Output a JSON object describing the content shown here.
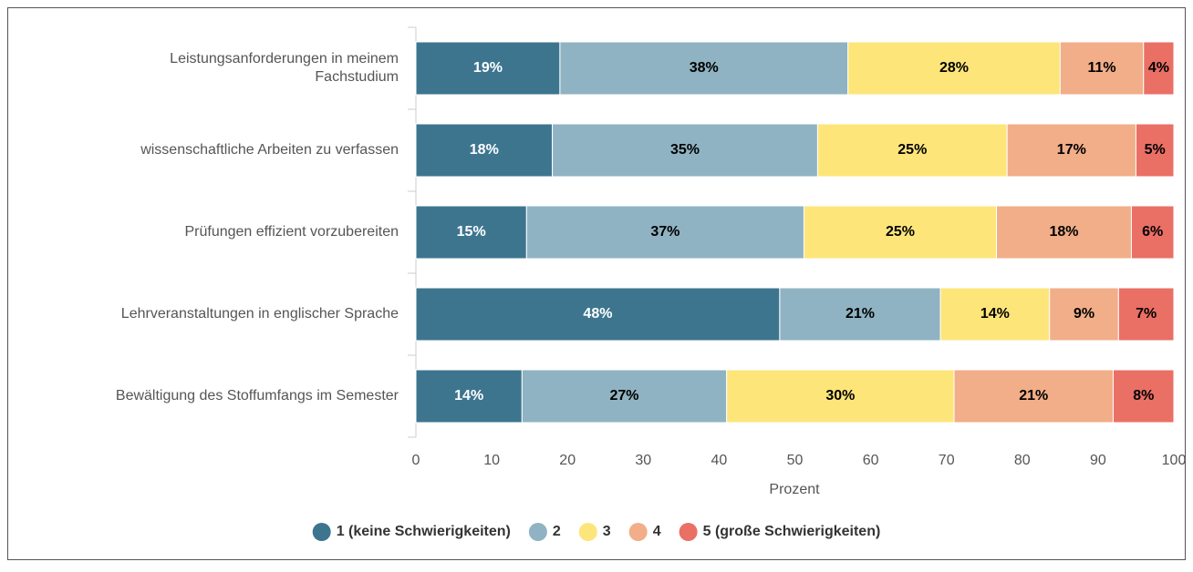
{
  "chart_data": {
    "type": "stacked-barh",
    "categories": [
      "Leistungsanforderungen in meinem\nFachstudium",
      "wissenschaftliche Arbeiten zu verfassen",
      "Prüfungen effizient vorzubereiten",
      "Lehrveranstaltungen in englischer Sprache",
      "Bewältigung des Stoffumfangs im Semester"
    ],
    "series": [
      {
        "name": "1 (keine Schwierigkeiten)",
        "color": "#3d758f",
        "label_color": "#ffffff",
        "values": [
          19,
          18,
          14.6,
          48,
          14
        ],
        "value_labels": [
          "19%",
          "18%",
          "15%",
          "48%",
          "14%"
        ]
      },
      {
        "name": "2",
        "color": "#8fb3c2",
        "label_color": "#000000",
        "values": [
          38,
          35,
          36.6,
          21.2,
          27
        ],
        "value_labels": [
          "38%",
          "35%",
          "37%",
          "21%",
          "27%"
        ]
      },
      {
        "name": "3",
        "color": "#fde57a",
        "label_color": "#000000",
        "values": [
          28,
          25,
          25.4,
          14.4,
          30
        ],
        "value_labels": [
          "28%",
          "25%",
          "25%",
          "14%",
          "30%"
        ]
      },
      {
        "name": "4",
        "color": "#f1ae88",
        "label_color": "#000000",
        "values": [
          11,
          17,
          17.8,
          9.1,
          21
        ],
        "value_labels": [
          "11%",
          "17%",
          "18%",
          "9%",
          "21%"
        ]
      },
      {
        "name": "5 (große Schwierigkeiten)",
        "color": "#ea6f65",
        "label_color": "#000000",
        "values": [
          4,
          5,
          5.6,
          7.3,
          8
        ],
        "value_labels": [
          "4%",
          "5%",
          "6%",
          "7%",
          "8%"
        ]
      }
    ],
    "xlabel": "Prozent",
    "xlim": [
      0,
      100
    ],
    "xticks": [
      0,
      10,
      20,
      30,
      40,
      50,
      60,
      70,
      80,
      90,
      100
    ],
    "grid": false,
    "legend": "bottom"
  }
}
